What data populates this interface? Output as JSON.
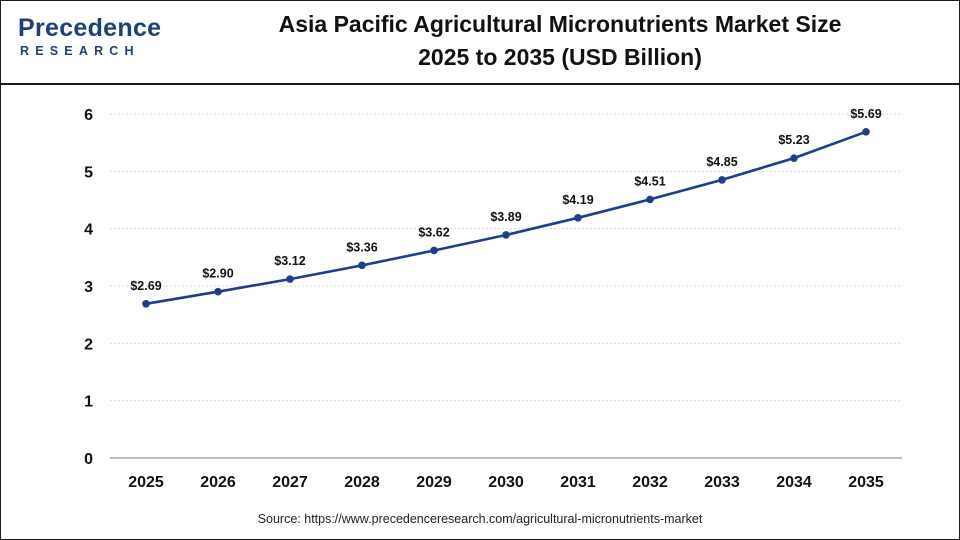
{
  "header": {
    "logo_top": "Precedence",
    "logo_bottom": "RESEARCH",
    "title_line1": "Asia Pacific Agricultural Micronutrients Market Size",
    "title_line2": "2025 to 2035 (USD Billion)"
  },
  "source": "Source: https://www.precedenceresearch.com/agricultural-micronutrients-market",
  "colors": {
    "line": "#1f3d8f",
    "logo": "#1f3f7a",
    "grid": "#d9d9d9"
  },
  "chart_data": {
    "type": "line",
    "title": "Asia Pacific Agricultural Micronutrients Market Size 2025 to 2035 (USD Billion)",
    "xlabel": "",
    "ylabel": "",
    "categories": [
      "2025",
      "2026",
      "2027",
      "2028",
      "2029",
      "2030",
      "2031",
      "2032",
      "2033",
      "2034",
      "2035"
    ],
    "values": [
      2.69,
      2.9,
      3.12,
      3.36,
      3.62,
      3.89,
      4.19,
      4.51,
      4.85,
      5.23,
      5.69
    ],
    "data_labels": [
      "$2.69",
      "$2.90",
      "$3.12",
      "$3.36",
      "$3.62",
      "$3.89",
      "$4.19",
      "$4.51",
      "$4.85",
      "$5.23",
      "$5.69"
    ],
    "yticks": [
      "0",
      "1",
      "2",
      "3",
      "4",
      "5",
      "6"
    ],
    "ylim": [
      0,
      6
    ],
    "grid": true,
    "legend": "none"
  }
}
